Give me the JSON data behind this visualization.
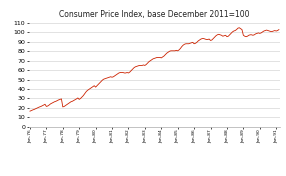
{
  "title": "Consumer Price Index, base December 2011=100",
  "title_fontsize": 5.5,
  "line_color": "#cc2200",
  "background_color": "#ffffff",
  "ylim": [
    0,
    112
  ],
  "yticks": [
    0,
    10,
    20,
    30,
    40,
    50,
    60,
    70,
    80,
    90,
    100,
    110
  ],
  "ylabel_fontsize": 4.5,
  "xlabel_fontsize": 3.2,
  "grid_color": "#cccccc",
  "values": [
    16.5,
    17.2,
    17.8,
    18.3,
    19.0,
    19.8,
    20.5,
    21.0,
    21.5,
    22.2,
    23.0,
    23.8,
    21.5,
    22.0,
    23.0,
    24.2,
    25.0,
    25.8,
    26.5,
    27.0,
    27.8,
    28.5,
    29.0,
    29.5,
    21.0,
    21.5,
    22.5,
    23.5,
    24.5,
    25.5,
    26.5,
    27.0,
    27.8,
    28.5,
    29.5,
    30.5,
    29.0,
    30.0,
    31.5,
    33.0,
    35.0,
    37.0,
    38.5,
    39.5,
    40.5,
    41.5,
    42.5,
    43.5,
    42.0,
    43.5,
    45.0,
    46.5,
    48.0,
    49.5,
    50.5,
    51.0,
    51.5,
    52.0,
    52.5,
    53.0,
    52.5,
    53.0,
    54.0,
    55.0,
    56.0,
    57.0,
    57.5,
    57.5,
    57.5,
    57.0,
    57.0,
    57.5,
    57.0,
    58.0,
    59.5,
    61.0,
    62.5,
    63.5,
    64.0,
    64.5,
    65.0,
    65.0,
    65.0,
    65.5,
    65.0,
    66.0,
    67.5,
    69.0,
    70.0,
    71.0,
    72.0,
    72.5,
    73.0,
    73.5,
    73.5,
    73.5,
    73.0,
    74.0,
    75.0,
    76.5,
    78.0,
    79.0,
    80.0,
    80.5,
    80.5,
    80.5,
    80.5,
    81.0,
    80.5,
    81.5,
    83.0,
    85.0,
    86.5,
    87.5,
    88.0,
    88.0,
    88.0,
    88.5,
    89.0,
    89.5,
    88.0,
    88.5,
    89.5,
    91.0,
    92.0,
    93.0,
    93.5,
    93.5,
    93.0,
    92.5,
    92.5,
    93.0,
    91.5,
    92.0,
    93.5,
    95.0,
    96.5,
    97.5,
    98.0,
    97.5,
    97.0,
    96.0,
    96.5,
    97.0,
    95.5,
    96.0,
    97.5,
    99.0,
    100.5,
    101.5,
    102.0,
    103.0,
    104.5,
    105.0,
    104.0,
    103.0,
    97.0,
    96.0,
    95.5,
    96.0,
    97.0,
    97.5,
    97.5,
    97.0,
    97.5,
    98.5,
    99.0,
    99.5,
    99.0,
    99.5,
    100.5,
    101.5,
    102.0,
    102.5,
    102.0,
    101.5,
    101.0,
    101.0,
    101.5,
    102.0,
    101.5,
    102.0,
    103.0
  ],
  "start_year": 1976,
  "start_month": 1
}
